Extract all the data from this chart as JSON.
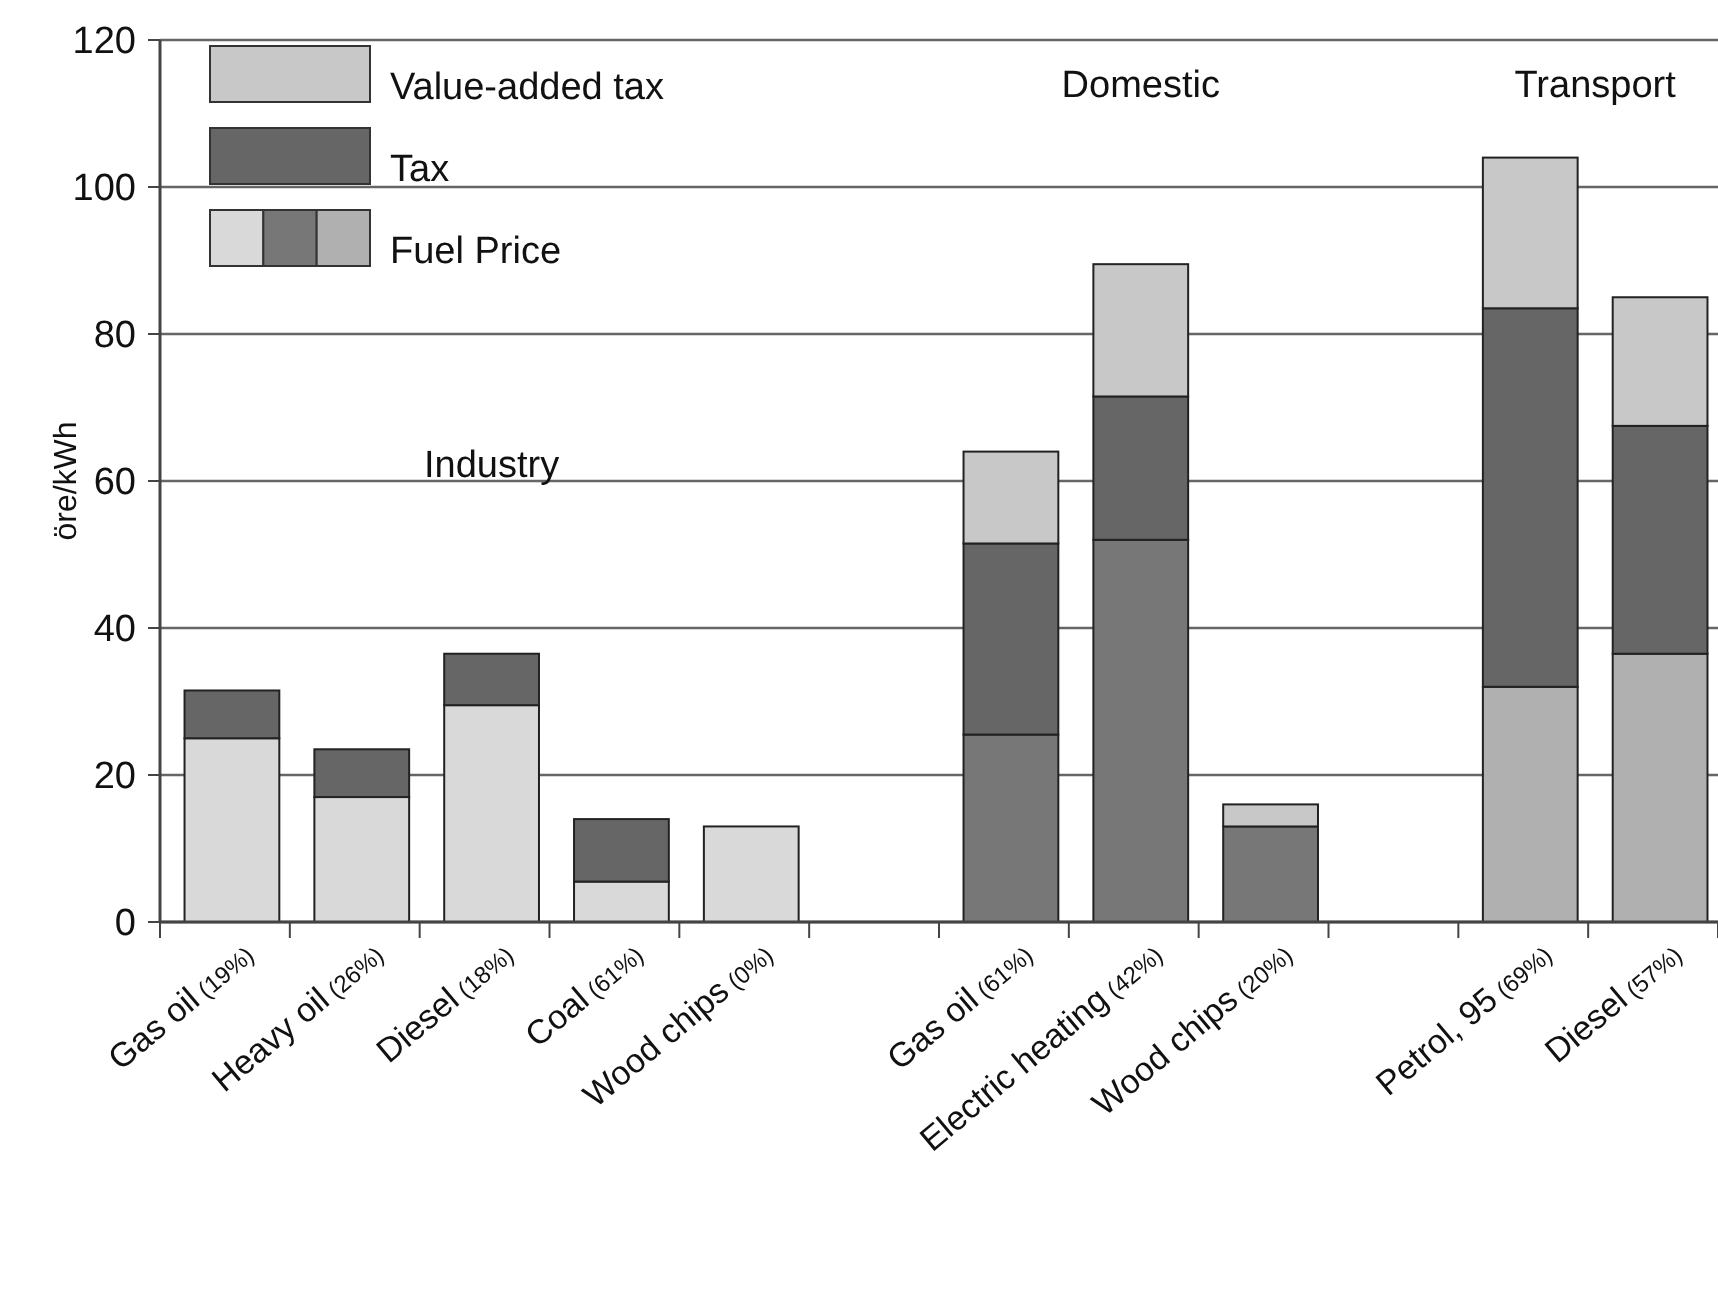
{
  "chart_data": {
    "type": "bar",
    "stacked": true,
    "ylabel": "öre/kWh",
    "categories": [
      "Gas oil (19%)",
      "Heavy oil (26%)",
      "Diesel (18%)",
      "Coal (61%)",
      "Wood chips (0%)",
      null,
      "Gas oil (61%)",
      "Electric heating (42%)",
      "Wood chips (20%)",
      null,
      "Petrol, 95 (69%)",
      "Diesel (57%)"
    ],
    "series": [
      {
        "name": "Fuel Price",
        "colors": [
          "#d9d9d9",
          "#d9d9d9",
          "#d9d9d9",
          "#d9d9d9",
          "#d9d9d9",
          "#d9d9d9",
          "#777777",
          "#777777",
          "#777777",
          "#b0b0b0",
          "#b0b0b0",
          "#b0b0b0"
        ],
        "values": [
          25,
          17,
          29.5,
          5.5,
          13,
          null,
          25.5,
          52,
          13,
          null,
          32,
          36.5
        ]
      },
      {
        "name": "Tax",
        "color": "#666666",
        "values": [
          6.5,
          6.5,
          7,
          8.5,
          null,
          null,
          26,
          19.5,
          null,
          null,
          51.5,
          31
        ]
      },
      {
        "name": "Value-added tax",
        "color": "#c8c8c8",
        "values": [
          null,
          null,
          null,
          null,
          null,
          null,
          12.5,
          18,
          3,
          null,
          20.5,
          17.5
        ]
      }
    ],
    "ylim": [
      0,
      120
    ],
    "yticks": [
      0,
      20,
      40,
      60,
      80,
      100,
      120
    ],
    "grid": "y",
    "legend": "top left",
    "annotations": [
      "Industry",
      "Domestic",
      "Transport"
    ]
  }
}
